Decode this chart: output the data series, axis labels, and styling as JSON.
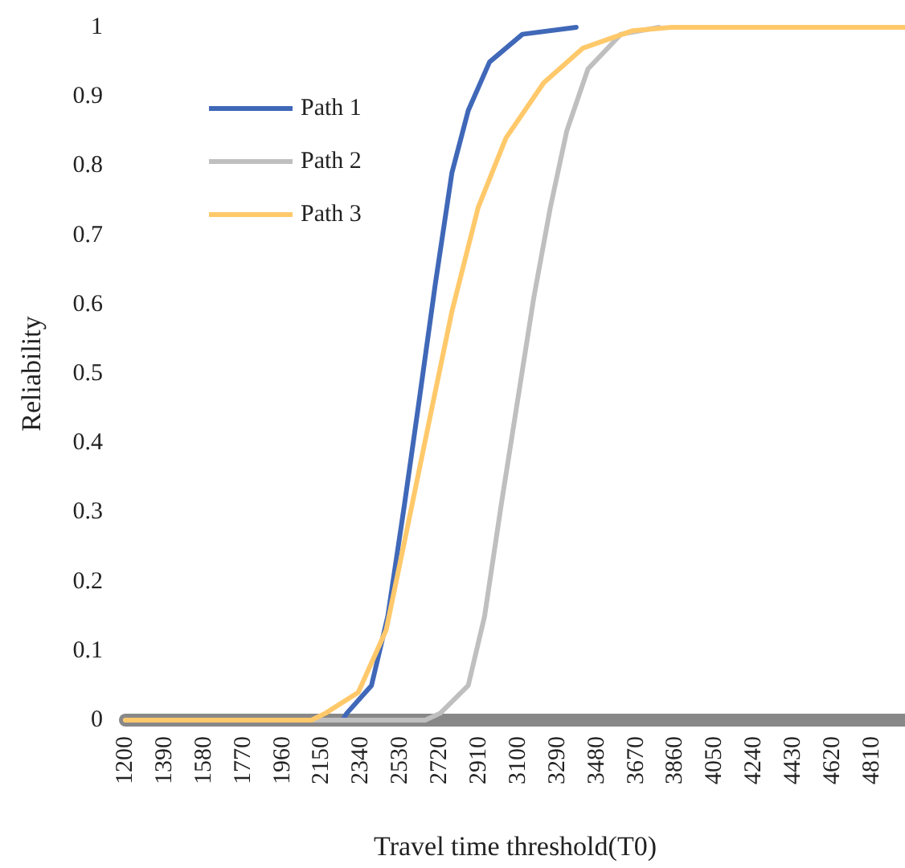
{
  "chart_data": {
    "type": "line",
    "xlabel": "Travel time threshold(T0)",
    "ylabel": "Reliability",
    "xlim": [
      1200,
      4970
    ],
    "xticks": [
      1200,
      1390,
      1580,
      1770,
      1960,
      2150,
      2340,
      2530,
      2720,
      2910,
      3100,
      3290,
      3480,
      3670,
      3860,
      4050,
      4240,
      4430,
      4620,
      4810
    ],
    "ylim": [
      0,
      1
    ],
    "yticks": [
      0,
      0.1,
      0.2,
      0.3,
      0.4,
      0.5,
      0.6,
      0.7,
      0.8,
      0.9,
      1
    ],
    "grid": false,
    "legend": "top left",
    "marker": "none",
    "line_style": "solid",
    "series": [
      {
        "name": "Path 1",
        "color": "#4068b8",
        "x": [
          1200,
          2250,
          2271,
          2390,
          2469,
          2549,
          2620,
          2699,
          2779,
          2858,
          2961,
          3120,
          3380
        ],
        "values": [
          0,
          0,
          0.01,
          0.05,
          0.15,
          0.31,
          0.46,
          0.63,
          0.79,
          0.88,
          0.95,
          0.99,
          1
        ]
      },
      {
        "name": "Path 2",
        "color": "#bfbfbf",
        "x": [
          1200,
          2650,
          2723,
          2858,
          2937,
          3017,
          3096,
          3175,
          3255,
          3334,
          3437,
          3596,
          3780
        ],
        "values": [
          0,
          0,
          0.01,
          0.05,
          0.15,
          0.31,
          0.46,
          0.61,
          0.74,
          0.85,
          0.94,
          0.99,
          1
        ]
      },
      {
        "name": "Path 3",
        "color": "#ffc96b",
        "x": [
          1200,
          2100,
          2168,
          2326,
          2461,
          2565,
          2668,
          2779,
          2906,
          3040,
          3223,
          3413,
          3651,
          3840,
          4970
        ],
        "values": [
          0,
          0,
          0.01,
          0.04,
          0.13,
          0.28,
          0.43,
          0.59,
          0.74,
          0.84,
          0.92,
          0.97,
          0.995,
          1,
          1
        ]
      }
    ]
  }
}
